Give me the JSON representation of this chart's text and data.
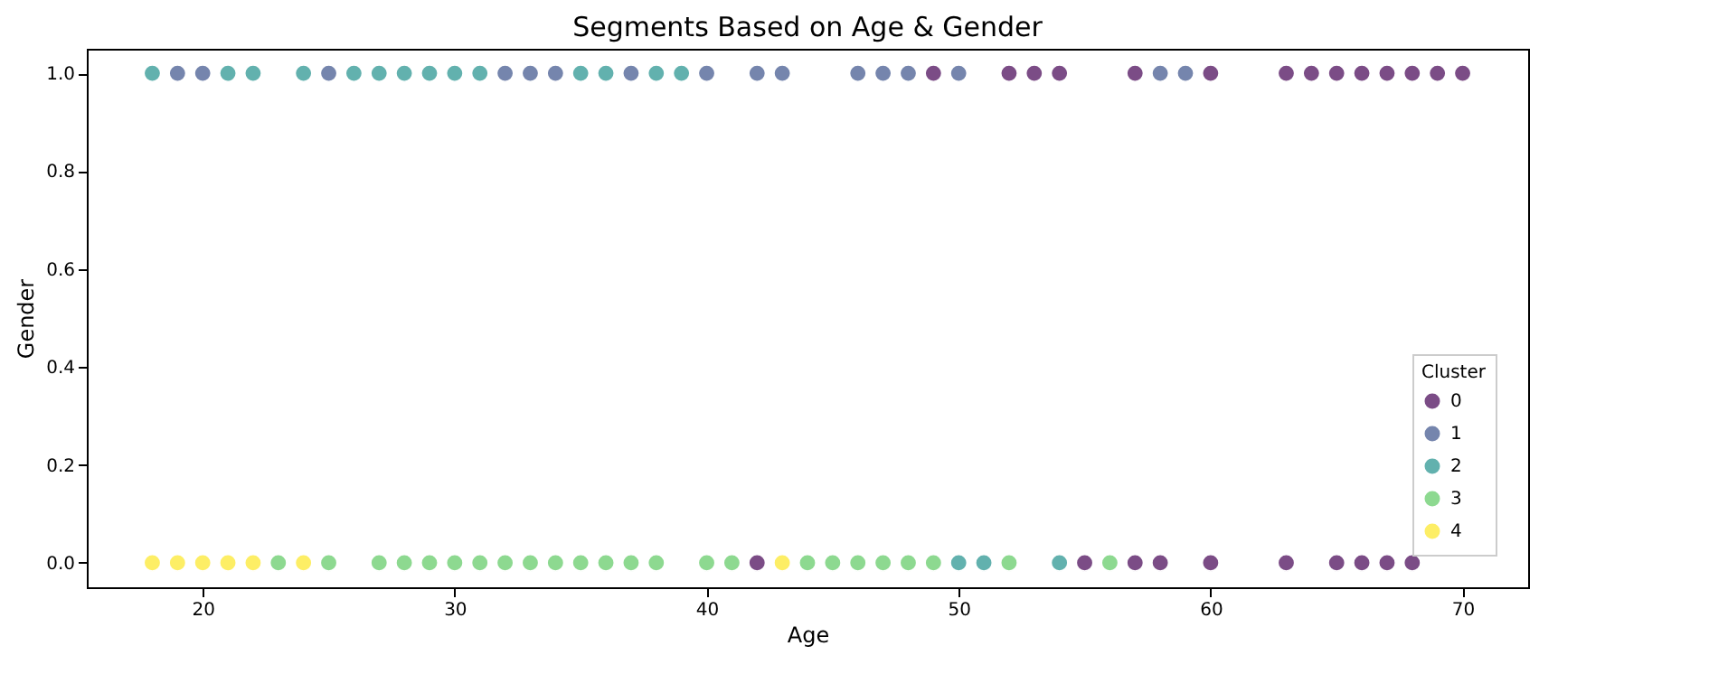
{
  "chart_data": {
    "type": "scatter",
    "title": "Segments Based on Age & Gender",
    "xlabel": "Age",
    "ylabel": "Gender",
    "legend_title": "Cluster",
    "legend": "bottom right",
    "marker": "circle",
    "grid": false,
    "xlim": [
      15.4,
      72.6
    ],
    "xticks": [
      20,
      30,
      40,
      50,
      60,
      70
    ],
    "ylim": [
      -0.05,
      1.05
    ],
    "yticks": [
      {
        "value": 0,
        "label": "0.0"
      },
      {
        "value": 0.2,
        "label": "0.2"
      },
      {
        "value": 0.4,
        "label": "0.4"
      },
      {
        "value": 0.6,
        "label": "0.6"
      },
      {
        "value": 0.8,
        "label": "0.8"
      },
      {
        "value": 1,
        "label": "1.0"
      }
    ],
    "series": [
      {
        "name": "0",
        "color": "#440154",
        "x": [
          49,
          52,
          53,
          54,
          57,
          60,
          63,
          64,
          65,
          66,
          67,
          68,
          69,
          70,
          42,
          55,
          57,
          58,
          60,
          63,
          65,
          66,
          67,
          68
        ],
        "values": [
          1,
          1,
          1,
          1,
          1,
          1,
          1,
          1,
          1,
          1,
          1,
          1,
          1,
          1,
          0,
          0,
          0,
          0,
          0,
          0,
          0,
          0,
          0,
          0
        ]
      },
      {
        "name": "1",
        "color": "#3b528b",
        "x": [
          19,
          20,
          25,
          32,
          33,
          34,
          37,
          40,
          42,
          43,
          46,
          47,
          48,
          50,
          58,
          59
        ],
        "values": [
          1,
          1,
          1,
          1,
          1,
          1,
          1,
          1,
          1,
          1,
          1,
          1,
          1,
          1,
          1,
          1
        ]
      },
      {
        "name": "2",
        "color": "#21918c",
        "x": [
          18,
          21,
          22,
          24,
          26,
          27,
          28,
          29,
          30,
          31,
          35,
          36,
          38,
          39,
          50,
          51,
          54
        ],
        "values": [
          1,
          1,
          1,
          1,
          1,
          1,
          1,
          1,
          1,
          1,
          1,
          1,
          1,
          1,
          0,
          0,
          0
        ]
      },
      {
        "name": "3",
        "color": "#5ec962",
        "x": [
          23,
          25,
          27,
          28,
          29,
          30,
          31,
          32,
          33,
          34,
          35,
          36,
          37,
          38,
          40,
          41,
          44,
          45,
          46,
          47,
          48,
          49,
          52,
          56
        ],
        "values": [
          0,
          0,
          0,
          0,
          0,
          0,
          0,
          0,
          0,
          0,
          0,
          0,
          0,
          0,
          0,
          0,
          0,
          0,
          0,
          0,
          0,
          0,
          0,
          0
        ]
      },
      {
        "name": "4",
        "color": "#fde725",
        "x": [
          18,
          19,
          20,
          21,
          22,
          24,
          43
        ],
        "values": [
          0,
          0,
          0,
          0,
          0,
          0,
          0
        ]
      }
    ]
  }
}
